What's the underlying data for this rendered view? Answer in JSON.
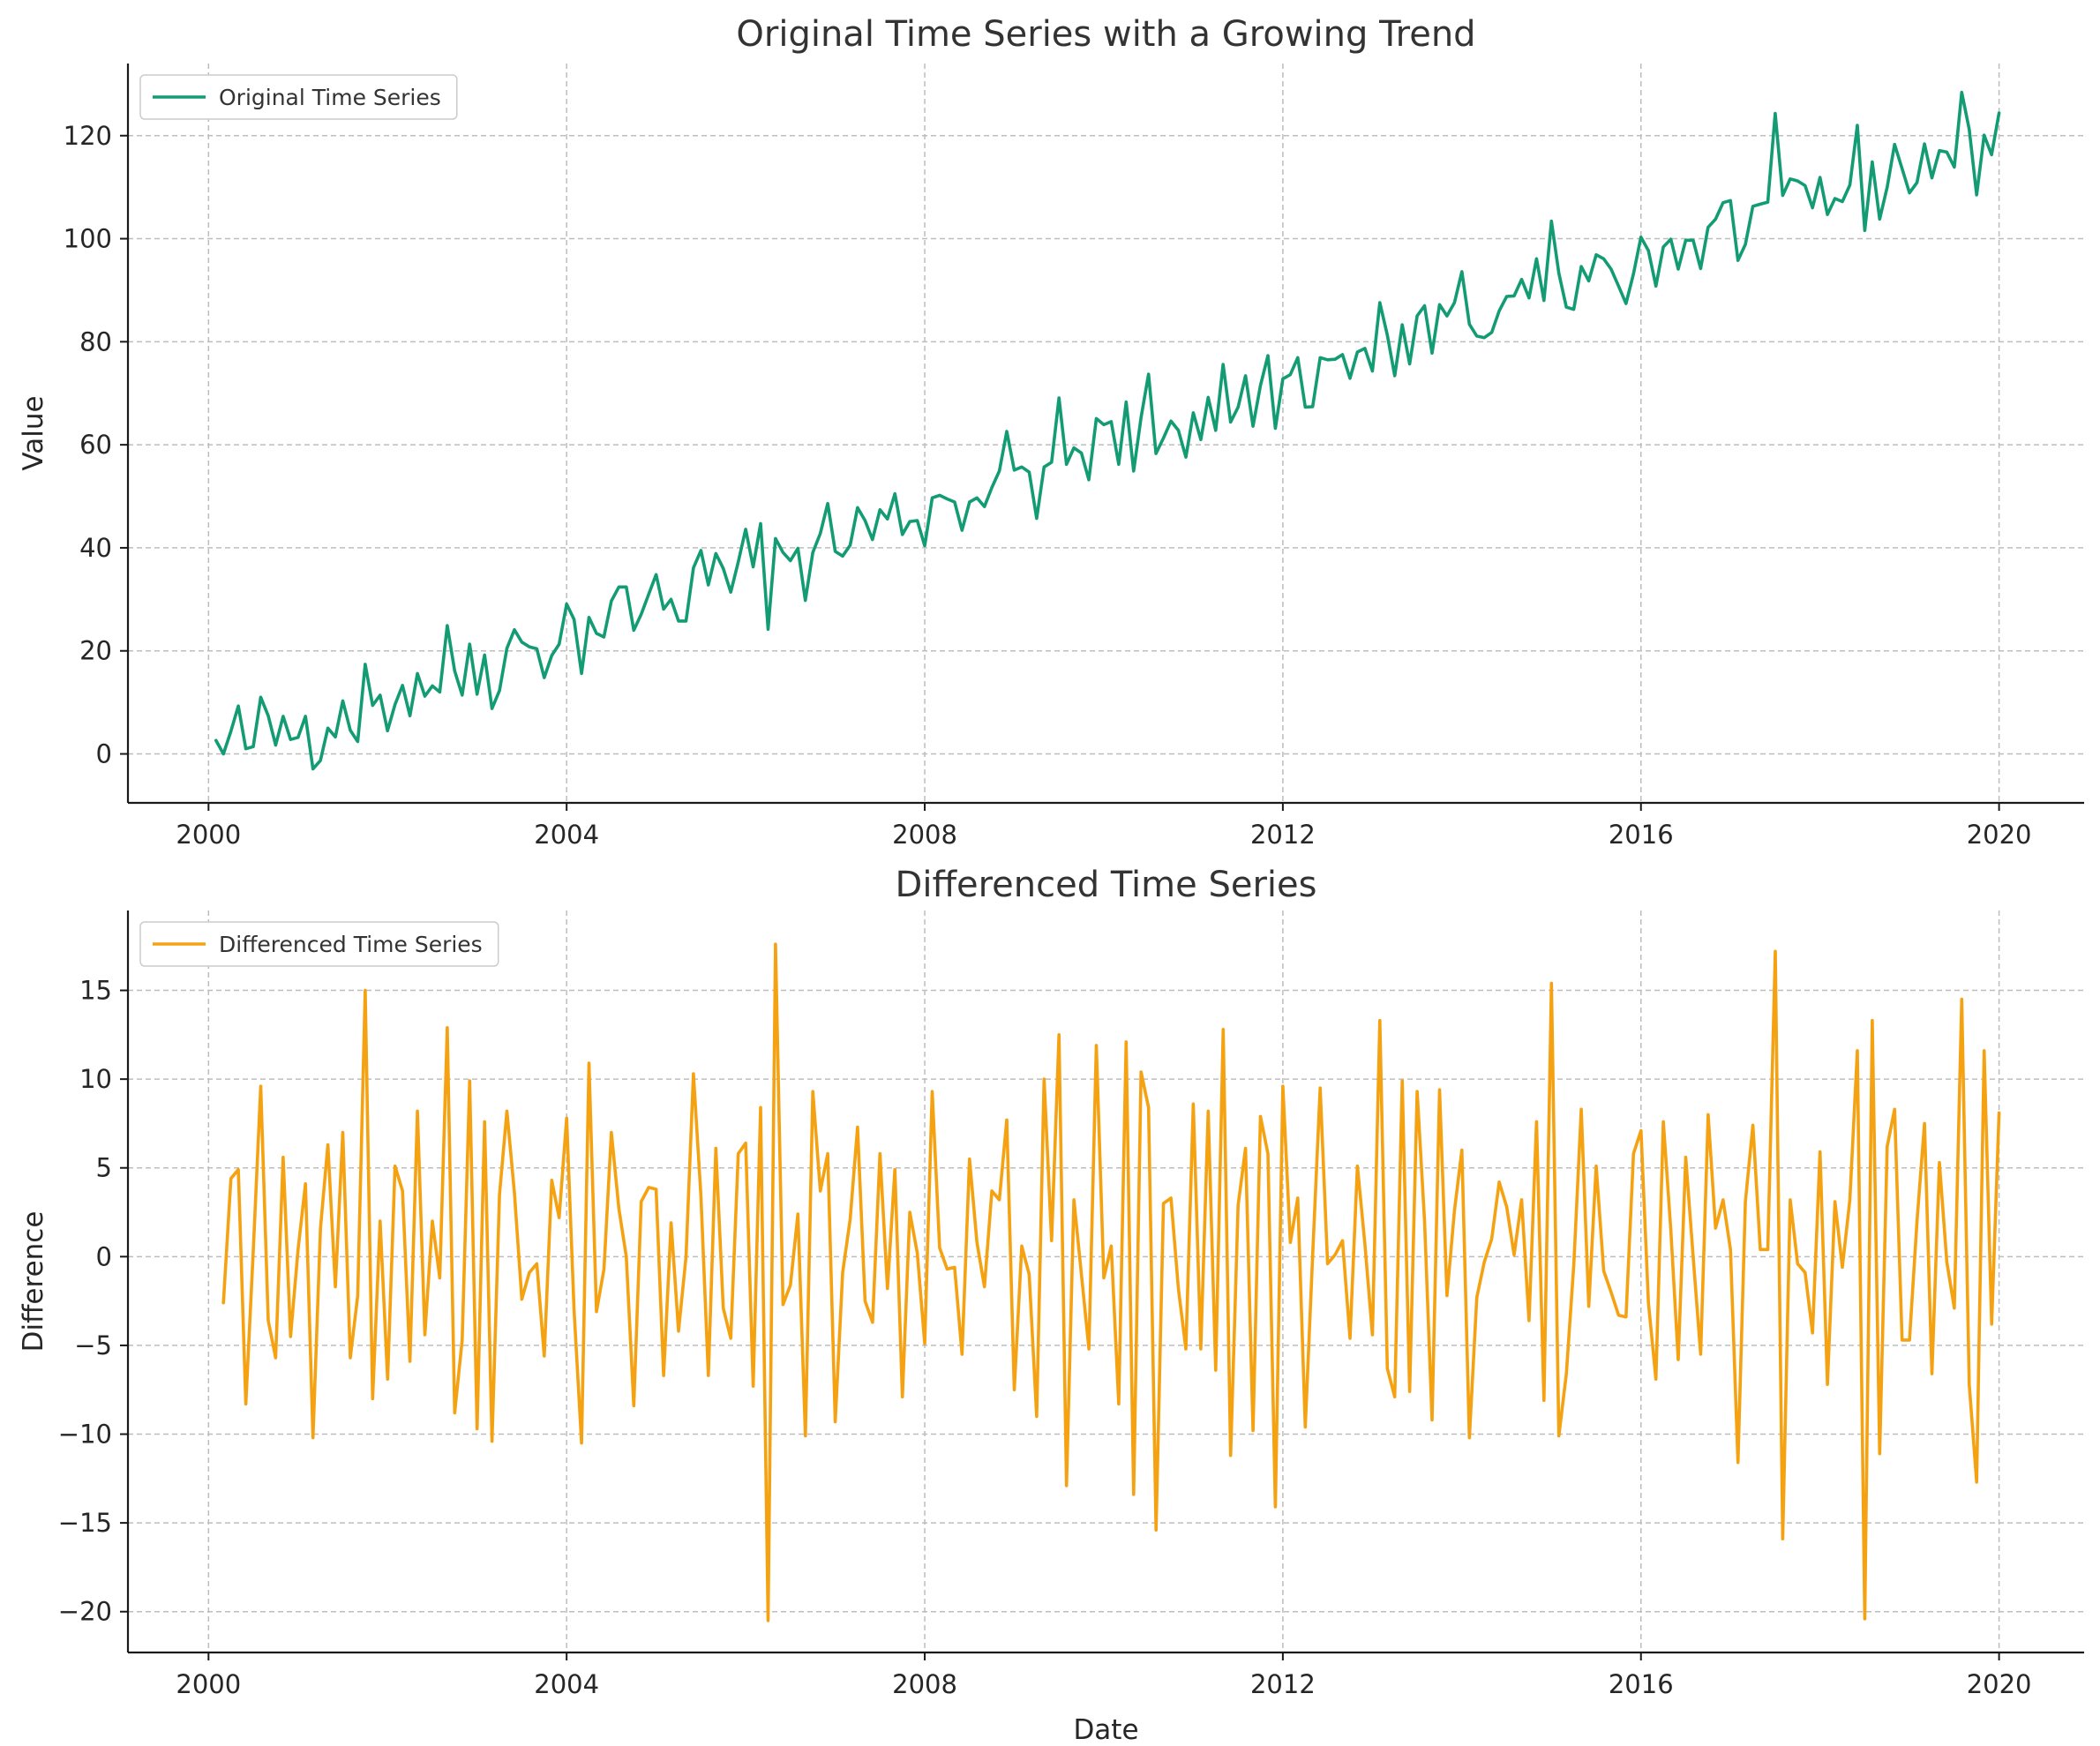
{
  "colors": {
    "original": "#139c74",
    "differenced": "#f5a212"
  },
  "chart_data": [
    {
      "type": "line",
      "title": "Original Time Series with a Growing Trend",
      "xlabel": "",
      "ylabel": "Value",
      "xlim": [
        1999.1,
        2020.95
      ],
      "ylim": [
        -9.5,
        134
      ],
      "xticks": [
        2000,
        2004,
        2008,
        2012,
        2016,
        2020
      ],
      "xtick_labels": [
        "2000",
        "2004",
        "2008",
        "2012",
        "2016",
        "2020"
      ],
      "yticks": [
        0,
        20,
        40,
        60,
        80,
        100,
        120
      ],
      "ytick_labels": [
        "0",
        "20",
        "40",
        "60",
        "80",
        "100",
        "120"
      ],
      "grid": true,
      "legend_position": "upper-left",
      "x_start": 2000.0833,
      "x_step_months": 1,
      "series": [
        {
          "name": "Original Time Series",
          "color": "#139c74",
          "values": [
            2.6,
            0,
            4.4,
            9.3,
            1,
            1.4,
            11.0,
            7.4,
            1.7,
            7.3,
            2.8,
            3.2,
            7.3,
            -2.9,
            -1.3,
            5.0,
            3.3,
            10.3,
            4.6,
            2.4,
            17.4,
            9.4,
            11.4,
            4.5,
            9.6,
            13.3,
            7.4,
            15.6,
            11.2,
            13.2,
            12.0,
            24.9,
            16.1,
            11.4,
            21.3,
            11.6,
            19.2,
            8.8,
            12.3,
            20.5,
            24.1,
            21.7,
            20.8,
            20.4,
            14.8,
            19.1,
            21.3,
            29.1,
            26.1,
            15.6,
            26.5,
            23.4,
            22.7,
            29.7,
            32.4,
            32.4,
            24.0,
            27.1,
            31.0,
            34.8,
            28.1,
            30.0,
            25.8,
            25.8,
            36.1,
            39.5,
            32.8,
            38.9,
            36.0,
            31.4,
            37.2,
            43.6,
            36.3,
            44.7,
            24.2,
            41.8,
            39.1,
            37.5,
            39.9,
            29.8,
            39.1,
            42.8,
            48.6,
            39.3,
            38.4,
            40.5,
            47.8,
            45.3,
            41.6,
            47.4,
            45.6,
            50.5,
            42.6,
            45.1,
            45.3,
            40.4,
            49.7,
            50.2,
            49.5,
            48.9,
            43.4,
            48.9,
            49.7,
            48.0,
            51.7,
            54.9,
            62.6,
            55.1,
            55.7,
            54.7,
            45.7,
            55.7,
            56.6,
            69.1,
            56.2,
            59.4,
            58.4,
            53.2,
            65.1,
            63.9,
            64.5,
            56.2,
            68.3,
            54.9,
            65.3,
            73.7,
            58.3,
            61.3,
            64.6,
            62.8,
            57.6,
            66.2,
            61.0,
            69.2,
            62.8,
            75.6,
            64.4,
            67.3,
            73.4,
            63.6,
            71.5,
            77.3,
            63.2,
            72.8,
            73.6,
            76.9,
            67.3,
            67.4,
            76.9,
            76.5,
            76.6,
            77.5,
            72.9,
            78.0,
            78.7,
            74.3,
            87.6,
            81.3,
            73.4,
            83.3,
            75.7,
            85.0,
            87.0,
            77.8,
            87.2,
            85.0,
            87.6,
            93.6,
            83.4,
            81.1,
            80.8,
            81.8,
            86.0,
            88.8,
            88.9,
            92.1,
            88.5,
            96.1,
            88.0,
            103.4,
            93.3,
            86.7,
            86.3,
            94.6,
            91.8,
            96.9,
            96.1,
            94.1,
            90.8,
            87.4,
            93.2,
            100.3,
            97.7,
            90.8,
            98.4,
            99.9,
            94.1,
            99.7,
            99.7,
            94.2,
            102.2,
            103.8,
            107.0,
            107.4,
            95.8,
            98.9,
            106.3,
            106.7,
            107.1,
            124.3,
            108.4,
            111.6,
            111.2,
            110.3,
            106.0,
            111.9,
            104.7,
            107.8,
            107.2,
            110.4,
            122.0,
            101.6,
            114.9,
            103.8,
            110.0,
            118.3,
            113.6,
            108.9,
            110.9,
            118.4,
            111.8,
            117.1,
            116.8,
            113.9,
            128.4,
            121.2,
            108.5,
            120.1,
            116.3,
            124.4
          ]
        }
      ]
    },
    {
      "type": "line",
      "title": "Differenced Time Series",
      "xlabel": "Date",
      "ylabel": "Difference",
      "xlim": [
        1999.1,
        2020.95
      ],
      "ylim": [
        -22.3,
        19.5
      ],
      "xticks": [
        2000,
        2004,
        2008,
        2012,
        2016,
        2020
      ],
      "xtick_labels": [
        "2000",
        "2004",
        "2008",
        "2012",
        "2016",
        "2020"
      ],
      "yticks": [
        -20,
        -15,
        -10,
        -5,
        0,
        5,
        10,
        15
      ],
      "ytick_labels": [
        "−20",
        "−15",
        "−10",
        "−5",
        "0",
        "5",
        "10",
        "15"
      ],
      "grid": true,
      "legend_position": "upper-left",
      "x_start": 2000.1667,
      "x_step_months": 1,
      "series": [
        {
          "name": "Differenced Time Series",
          "color": "#f5a212",
          "values": [
            -2.6,
            4.4,
            4.9,
            -8.3,
            0.4,
            9.6,
            -3.6,
            -5.7,
            5.6,
            -4.5,
            0.4,
            4.1,
            -10.2,
            1.6,
            6.3,
            -1.7,
            7.0,
            -5.7,
            -2.2,
            15.0,
            -8.0,
            2.0,
            -6.9,
            5.1,
            3.7,
            -5.9,
            8.2,
            -4.4,
            2.0,
            -1.2,
            12.9,
            -8.8,
            -4.7,
            9.9,
            -9.7,
            7.6,
            -10.4,
            3.5,
            8.2,
            3.6,
            -2.4,
            -0.9,
            -0.4,
            -5.6,
            4.3,
            2.2,
            7.8,
            -3.0,
            -10.5,
            10.9,
            -3.1,
            -0.7,
            7.0,
            2.7,
            0,
            -8.4,
            3.1,
            3.9,
            3.8,
            -6.7,
            1.9,
            -4.2,
            0,
            10.3,
            3.4,
            -6.7,
            6.1,
            -2.9,
            -4.6,
            5.8,
            6.4,
            -7.3,
            8.4,
            -20.5,
            17.6,
            -2.7,
            -1.6,
            2.4,
            -10.1,
            9.3,
            3.7,
            5.8,
            -9.3,
            -0.9,
            2.1,
            7.3,
            -2.5,
            -3.7,
            5.8,
            -1.8,
            4.9,
            -7.9,
            2.5,
            0.2,
            -4.9,
            9.3,
            0.5,
            -0.7,
            -0.6,
            -5.5,
            5.5,
            0.8,
            -1.7,
            3.7,
            3.2,
            7.7,
            -7.5,
            0.6,
            -1.0,
            -9.0,
            10.0,
            0.9,
            12.5,
            -12.9,
            3.2,
            -1.0,
            -5.2,
            11.9,
            -1.2,
            0.6,
            -8.3,
            12.1,
            -13.4,
            10.4,
            8.4,
            -15.4,
            3.0,
            3.3,
            -1.8,
            -5.2,
            8.6,
            -5.2,
            8.2,
            -6.4,
            12.8,
            -11.2,
            2.9,
            6.1,
            -9.8,
            7.9,
            5.8,
            -14.1,
            9.6,
            0.8,
            3.3,
            -9.6,
            0.1,
            9.5,
            -0.4,
            0.1,
            0.9,
            -4.6,
            5.1,
            0.7,
            -4.4,
            13.3,
            -6.3,
            -7.9,
            9.9,
            -7.6,
            9.3,
            2.0,
            -9.2,
            9.4,
            -2.2,
            2.6,
            6.0,
            -10.2,
            -2.3,
            -0.3,
            1.0,
            4.2,
            2.8,
            0.1,
            3.2,
            -3.6,
            7.6,
            -8.1,
            15.4,
            -10.1,
            -6.6,
            -0.4,
            8.3,
            -2.8,
            5.1,
            -0.8,
            -2.0,
            -3.3,
            -3.4,
            5.8,
            7.1,
            -2.6,
            -6.9,
            7.6,
            1.5,
            -5.8,
            5.6,
            0,
            -5.5,
            8.0,
            1.6,
            3.2,
            0.4,
            -11.6,
            3.1,
            7.4,
            0.4,
            0.4,
            17.2,
            -15.9,
            3.2,
            -0.4,
            -0.9,
            -4.3,
            5.9,
            -7.2,
            3.1,
            -0.6,
            3.2,
            11.6,
            -20.4,
            13.3,
            -11.1,
            6.2,
            8.3,
            -4.7,
            -4.7,
            2.0,
            7.5,
            -6.6,
            5.3,
            -0.3,
            -2.9,
            14.5,
            -7.2,
            -12.7,
            11.6,
            -3.8,
            8.1
          ]
        }
      ]
    }
  ]
}
